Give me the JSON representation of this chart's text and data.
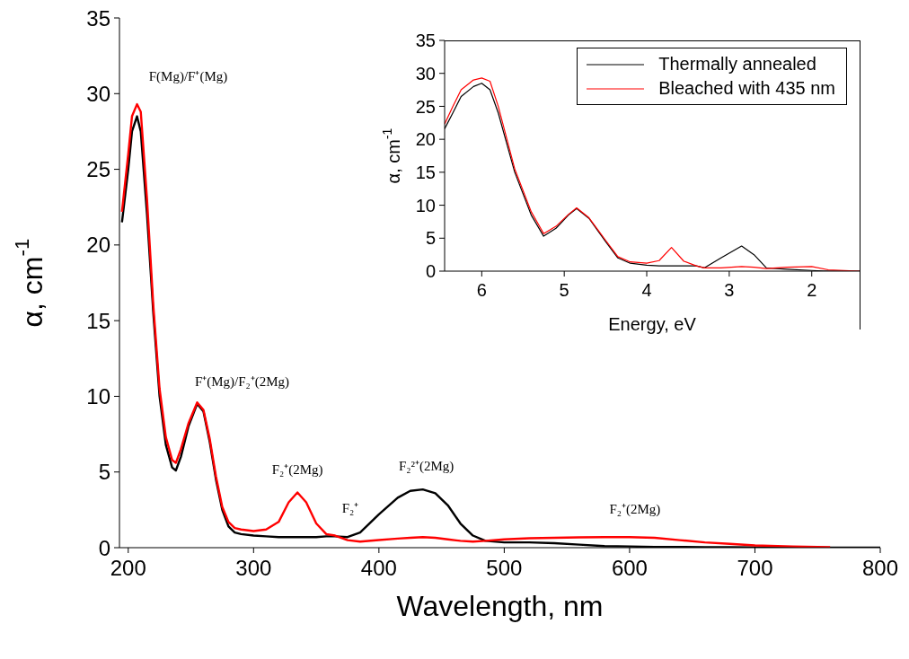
{
  "chart_data": [
    {
      "type": "line",
      "xlabel": "Wavelength, nm",
      "ylabel": "α, cm$^{-1}$",
      "xlim": [
        193,
        800
      ],
      "xticks": [
        200,
        300,
        400,
        500,
        600,
        700,
        800
      ],
      "ylim": [
        0,
        35
      ],
      "yticks": [
        0,
        5,
        10,
        15,
        20,
        25,
        30,
        35
      ],
      "grid": false,
      "legend": false,
      "marker": "none",
      "line_style": "solid",
      "x": [
        195,
        200,
        203,
        207,
        210,
        215,
        220,
        225,
        230,
        235,
        238,
        242,
        248,
        255,
        260,
        265,
        270,
        275,
        280,
        285,
        290,
        300,
        310,
        320,
        328,
        335,
        342,
        350,
        358,
        365,
        375,
        385,
        400,
        415,
        425,
        435,
        445,
        455,
        465,
        475,
        485,
        500,
        520,
        540,
        560,
        580,
        600,
        620,
        640,
        660,
        680,
        700,
        730,
        760,
        800
      ],
      "series": [
        {
          "color": "#000000",
          "values": [
            21.5,
            25,
            27.5,
            28.5,
            27.5,
            22,
            15.5,
            10,
            6.8,
            5.3,
            5.1,
            6,
            8,
            9.5,
            9,
            7,
            4.5,
            2.5,
            1.4,
            1.0,
            0.9,
            0.8,
            0.75,
            0.7,
            0.7,
            0.7,
            0.7,
            0.7,
            0.75,
            0.75,
            0.7,
            1.0,
            2.2,
            3.3,
            3.75,
            3.85,
            3.6,
            2.8,
            1.6,
            0.8,
            0.45,
            0.35,
            0.35,
            0.3,
            0.2,
            0.1,
            0.08,
            0.05,
            0.05,
            0.04,
            0.03,
            0.02,
            0.02,
            0.01,
            0
          ]
        },
        {
          "color": "#ff0000",
          "values": [
            22.2,
            26,
            28.5,
            29.3,
            28.8,
            23,
            16,
            10.5,
            7.3,
            5.8,
            5.6,
            6.5,
            8.2,
            9.6,
            9.1,
            7.2,
            4.7,
            2.7,
            1.7,
            1.3,
            1.2,
            1.1,
            1.2,
            1.7,
            3.0,
            3.65,
            3.0,
            1.6,
            0.9,
            0.8,
            0.5,
            0.4,
            0.5,
            0.6,
            0.65,
            0.7,
            0.65,
            0.55,
            0.45,
            0.4,
            0.45,
            0.55,
            0.62,
            0.65,
            0.68,
            0.7,
            0.7,
            0.65,
            0.5,
            0.35,
            0.25,
            0.15,
            0.08,
            0.03,
            null
          ]
        }
      ],
      "annotations": [
        {
          "text": "F(Mg)/F⁺(Mg)",
          "x": 207,
          "y": 29.3
        },
        {
          "text": "F⁺(Mg)/F₂⁺(2Mg)",
          "x": 255,
          "y": 9.6
        },
        {
          "text": "F₂⁺(2Mg)",
          "x": 335,
          "y": 3.65
        },
        {
          "text": "F₂⁺",
          "x": 375,
          "y": 0.7
        },
        {
          "text": "F₂²⁺(2Mg)",
          "x": 435,
          "y": 3.85
        },
        {
          "text": "F₂⁺(2Mg)",
          "x": 600,
          "y": 0.7
        }
      ]
    },
    {
      "type": "line",
      "xlabel": "Energy, eV",
      "ylabel": "α, cm$^{-1}$",
      "xlim": [
        6.45,
        1.42
      ],
      "xticks": [
        6,
        5,
        4,
        3,
        2
      ],
      "ylim": [
        0,
        35
      ],
      "yticks": [
        0,
        5,
        10,
        15,
        20,
        25,
        30,
        35
      ],
      "grid": false,
      "legend": "top right",
      "marker": "none",
      "line_style": "solid",
      "x": [
        6.45,
        6.35,
        6.25,
        6.1,
        6.0,
        5.9,
        5.8,
        5.6,
        5.4,
        5.25,
        5.1,
        4.95,
        4.85,
        4.7,
        4.5,
        4.35,
        4.2,
        4.0,
        3.85,
        3.7,
        3.55,
        3.4,
        3.3,
        3.1,
        2.85,
        2.7,
        2.55,
        2.3,
        2.0,
        1.8,
        1.42
      ],
      "series": [
        {
          "name": "Thermally annealed",
          "color": "#000000",
          "values": [
            21.6,
            24,
            26.5,
            28,
            28.5,
            27.5,
            24,
            15,
            8.5,
            5.3,
            6.5,
            8.5,
            9.5,
            8,
            4.5,
            2,
            1.2,
            0.9,
            0.8,
            0.8,
            0.8,
            0.8,
            0.5,
            2,
            3.8,
            2.5,
            0.5,
            0.3,
            0.1,
            0,
            0
          ]
        },
        {
          "name": "Bleached with 435 nm",
          "color": "#ff0000",
          "values": [
            22.3,
            25,
            27.5,
            29,
            29.3,
            28.8,
            25,
            15.5,
            9,
            5.7,
            6.8,
            8.6,
            9.6,
            8.1,
            4.7,
            2.2,
            1.4,
            1.2,
            1.6,
            3.6,
            1.5,
            0.8,
            0.5,
            0.5,
            0.7,
            0.6,
            0.4,
            0.6,
            0.7,
            0.2,
            0
          ]
        }
      ]
    }
  ]
}
